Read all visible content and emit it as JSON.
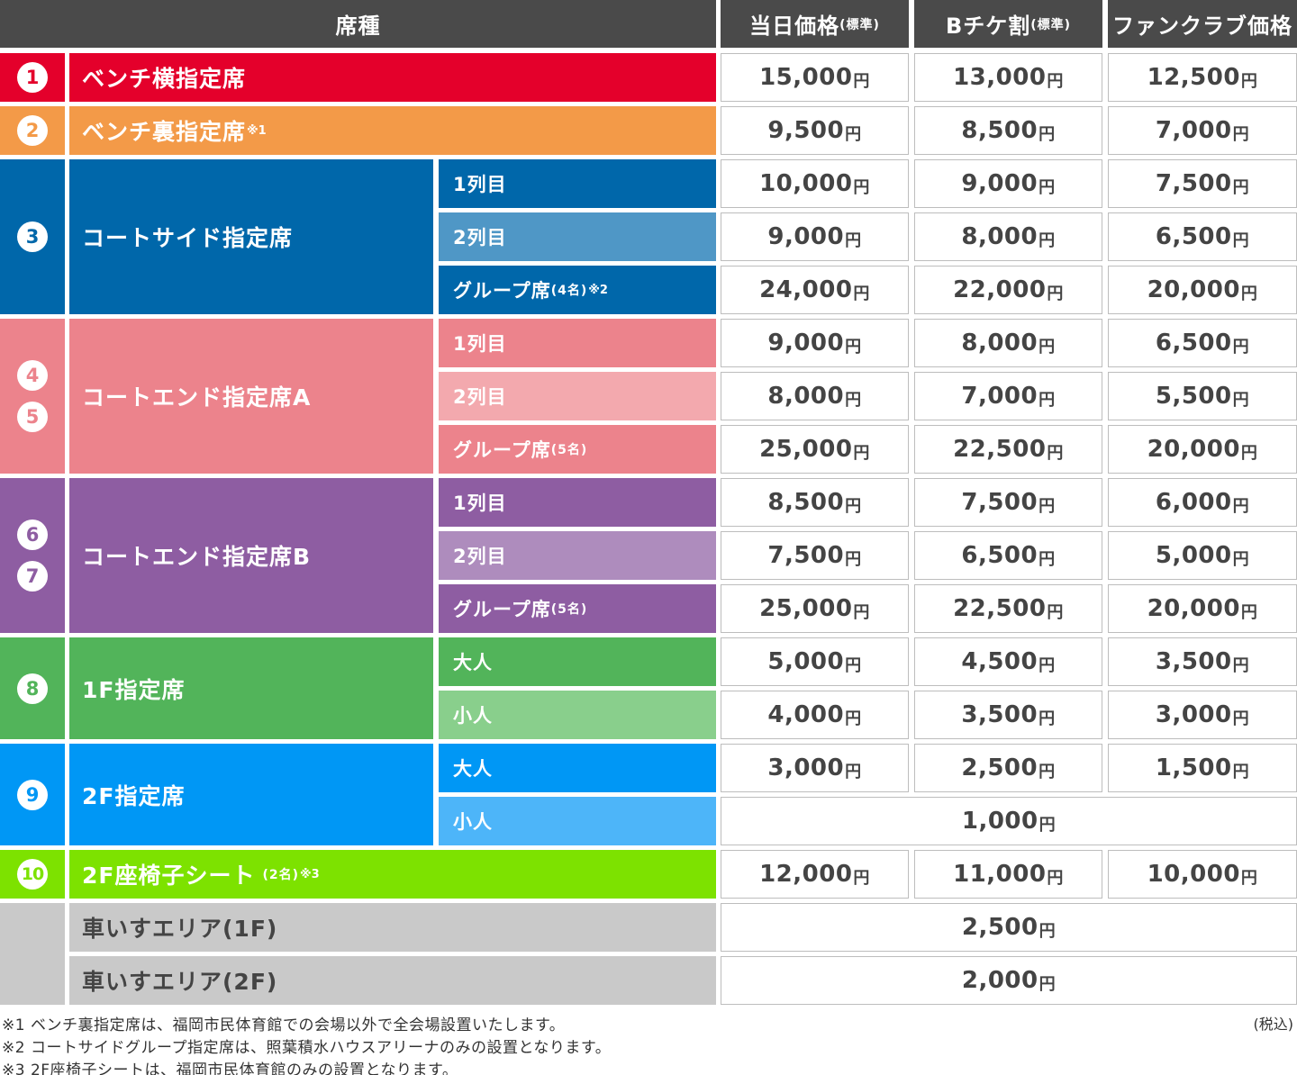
{
  "header": {
    "seat_type": "席種",
    "day_price": "当日価格",
    "day_price_note": "(標準)",
    "bchike": "Bチケ割",
    "bchike_note": "(標準)",
    "fanclub": "ファンクラブ価格"
  },
  "yen": "円",
  "colors": {
    "header": "#4a4a4a",
    "bench_side": "#e4002b",
    "bench_back": "#f39a48",
    "courtside": "#0067aa",
    "courtside_row2": "#4f97c6",
    "courtend_a": "#ec838c",
    "courtend_a_row2": "#f3a9ae",
    "courtend_b": "#8e5da2",
    "courtend_b_row2": "#ae8cbd",
    "floor1": "#52b45a",
    "floor1_child": "#89cf8c",
    "floor2": "#0097f5",
    "floor2_child": "#4db5f9",
    "seat2f": "#7de200",
    "wheelchair": "#c9c9c9"
  },
  "rows": {
    "r1": {
      "num": "1",
      "name": "ベンチ横指定席",
      "prices": [
        "15,000",
        "13,000",
        "12,500"
      ]
    },
    "r2": {
      "num": "2",
      "name": "ベンチ裏指定席",
      "note": "※1",
      "prices": [
        "9,500",
        "8,500",
        "7,000"
      ]
    },
    "r3": {
      "num": "3",
      "name": "コートサイド指定席",
      "subs": [
        {
          "label": "1列目",
          "prices": [
            "10,000",
            "9,000",
            "7,500"
          ]
        },
        {
          "label": "2列目",
          "prices": [
            "9,000",
            "8,000",
            "6,500"
          ]
        },
        {
          "label": "グループ席",
          "small": "(4名)",
          "note": "※2",
          "prices": [
            "24,000",
            "22,000",
            "20,000"
          ]
        }
      ]
    },
    "r45": {
      "num_a": "4",
      "num_b": "5",
      "name": "コートエンド指定席A",
      "subs": [
        {
          "label": "1列目",
          "prices": [
            "9,000",
            "8,000",
            "6,500"
          ]
        },
        {
          "label": "2列目",
          "prices": [
            "8,000",
            "7,000",
            "5,500"
          ]
        },
        {
          "label": "グループ席",
          "small": "(5名)",
          "prices": [
            "25,000",
            "22,500",
            "20,000"
          ]
        }
      ]
    },
    "r67": {
      "num_a": "6",
      "num_b": "7",
      "name": "コートエンド指定席B",
      "subs": [
        {
          "label": "1列目",
          "prices": [
            "8,500",
            "7,500",
            "6,000"
          ]
        },
        {
          "label": "2列目",
          "prices": [
            "7,500",
            "6,500",
            "5,000"
          ]
        },
        {
          "label": "グループ席",
          "small": "(5名)",
          "prices": [
            "25,000",
            "22,500",
            "20,000"
          ]
        }
      ]
    },
    "r8": {
      "num": "8",
      "name": "1F指定席",
      "subs": [
        {
          "label": "大人",
          "prices": [
            "5,000",
            "4,500",
            "3,500"
          ]
        },
        {
          "label": "小人",
          "prices": [
            "4,000",
            "3,500",
            "3,000"
          ]
        }
      ]
    },
    "r9": {
      "num": "9",
      "name": "2F指定席",
      "subs": [
        {
          "label": "大人",
          "prices": [
            "3,000",
            "2,500",
            "1,500"
          ]
        },
        {
          "label": "小人",
          "price_all": "1,000"
        }
      ]
    },
    "r10": {
      "num": "10",
      "name": "2F座椅子シート",
      "small": "(2名)",
      "note": "※3",
      "prices": [
        "12,000",
        "11,000",
        "10,000"
      ]
    },
    "w1": {
      "name": "車いすエリア(1F)",
      "price_all": "2,500"
    },
    "w2": {
      "name": "車いすエリア(2F)",
      "price_all": "2,000"
    }
  },
  "footnotes": [
    "※1 ベンチ裏指定席は、福岡市民体育館での会場以外で全会場設置いたします。",
    "※2 コートサイドグループ指定席は、照葉積水ハウスアリーナのみの設置となります。",
    "※3 2F座椅子シートは、福岡市民体育館のみの設置となります。"
  ],
  "tax_note": "(税込)"
}
